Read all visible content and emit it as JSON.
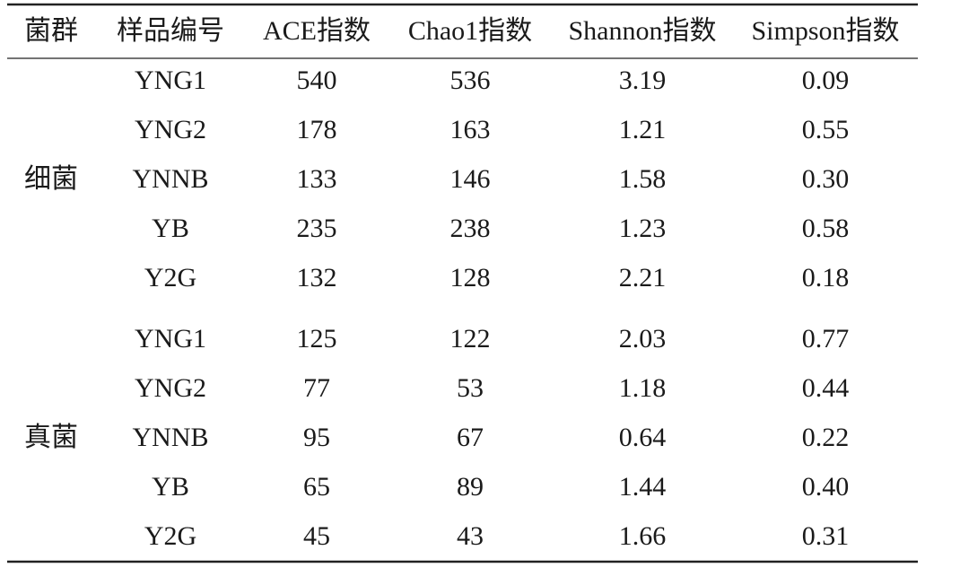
{
  "table": {
    "headers": [
      "菌群",
      "样品编号",
      "ACE指数",
      "Chao1指数",
      "Shannon指数",
      "Simpson指数"
    ],
    "groups": [
      {
        "label": "细菌",
        "rows": [
          [
            "YNG1",
            "540",
            "536",
            "3.19",
            "0.09"
          ],
          [
            "YNG2",
            "178",
            "163",
            "1.21",
            "0.55"
          ],
          [
            "YNNB",
            "133",
            "146",
            "1.58",
            "0.30"
          ],
          [
            "YB",
            "235",
            "238",
            "1.23",
            "0.58"
          ],
          [
            "Y2G",
            "132",
            "128",
            "2.21",
            "0.18"
          ]
        ]
      },
      {
        "label": "真菌",
        "rows": [
          [
            "YNG1",
            "125",
            "122",
            "2.03",
            "0.77"
          ],
          [
            "YNG2",
            "77",
            "53",
            "1.18",
            "0.44"
          ],
          [
            "YNNB",
            "95",
            "67",
            "0.64",
            "0.22"
          ],
          [
            "YB",
            "65",
            "89",
            "1.44",
            "0.40"
          ],
          [
            "Y2G",
            "45",
            "43",
            "1.66",
            "0.31"
          ]
        ]
      }
    ]
  }
}
